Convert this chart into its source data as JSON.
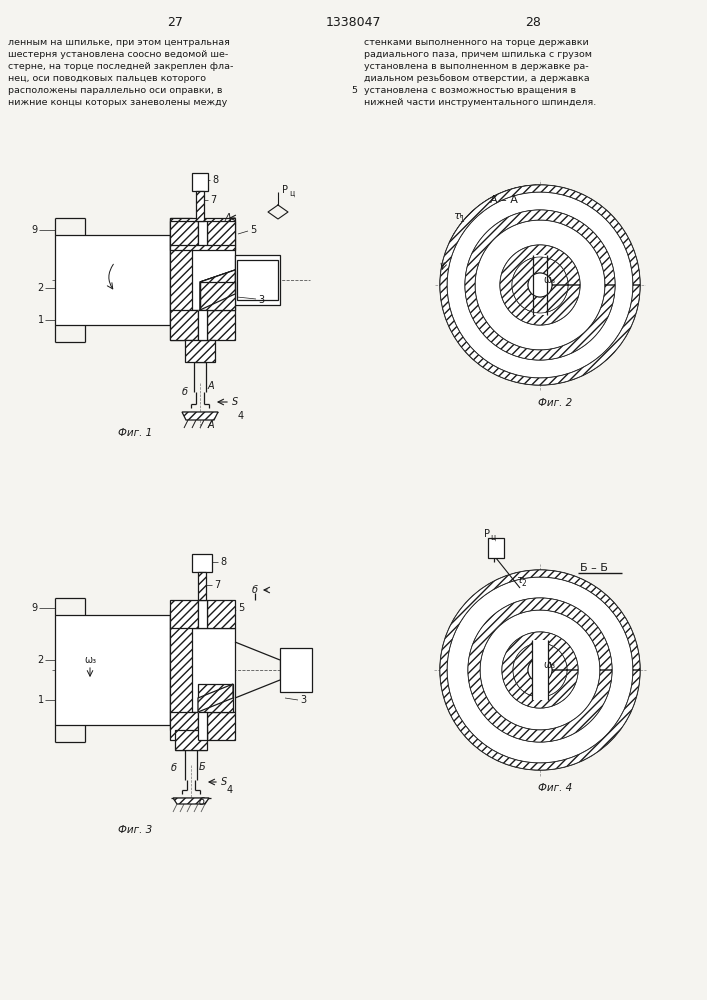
{
  "bg_color": "#f5f4f0",
  "line_color": "#1a1a1a",
  "text_color": "#1a1a1a",
  "page_num_left": "27",
  "page_num_center": "1338047",
  "page_num_right": "28",
  "header_text_left": [
    "ленным на шпильке, при этом центральная",
    "шестерня установлена соосно ведомой ше-",
    "стерне, на торце последней закреплен фла-",
    "нец, оси поводковых пальцев которого",
    "расположены параллельно оси оправки, в",
    "нижние концы которых заневолены между"
  ],
  "header_text_right": [
    "стенками выполненного на торце державки",
    "радиального паза, причем шпилька с грузом",
    "установлена в выполненном в державке ра-",
    "диальном резьбовом отверстии, а державка",
    "установлена с возможностью вращения в",
    "нижней части инструментального шпинделя."
  ]
}
